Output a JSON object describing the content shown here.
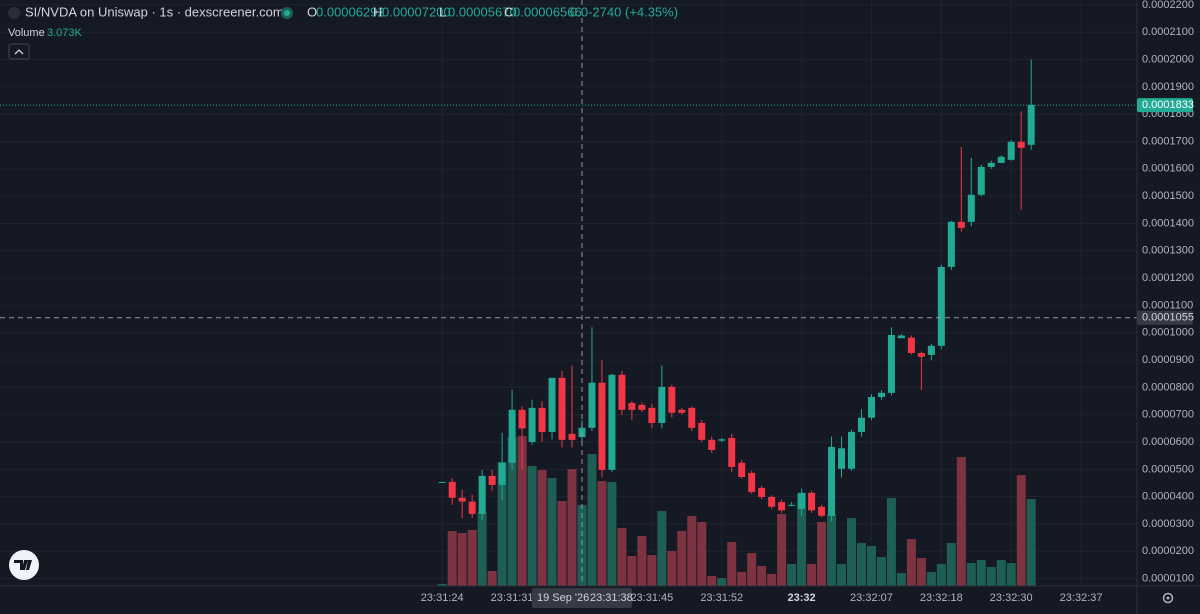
{
  "chart_data": {
    "type": "candlestick",
    "title": "SI/NVDA on Uniswap · 1s · dexscreener.com",
    "ohlc_legend": [
      {
        "key": "O",
        "value": "0.00006292"
      },
      {
        "key": "H",
        "value": "0.00007200"
      },
      {
        "key": "L",
        "value": "0.00005670"
      },
      {
        "key": "C",
        "value": "0.00006566"
      }
    ],
    "change": "0.0-2740 (+4.35%)",
    "volume_title": "Volume",
    "volume_value": "3.073K",
    "colors": {
      "up": "#22ab94",
      "down": "#f23645",
      "volume_up": "#1d5f55",
      "volume_down": "#7e3340"
    },
    "categories": [
      null,
      null,
      null,
      null,
      null,
      null,
      null,
      null,
      null,
      null,
      null,
      null,
      null,
      null,
      null,
      null,
      null,
      null,
      null,
      null,
      null,
      null,
      null,
      null,
      null,
      null,
      null,
      null,
      null,
      null,
      null,
      null,
      null,
      null,
      null,
      null,
      null,
      null,
      null,
      null,
      null,
      null,
      null,
      null,
      null,
      null,
      null,
      null,
      null,
      null,
      null,
      null,
      null,
      null,
      null,
      null,
      null,
      null,
      null,
      null
    ],
    "open": [
      4.54e-05,
      4.54e-05,
      3.96e-05,
      3.82e-05,
      3.37e-05,
      4.76e-05,
      4.43e-05,
      5.24e-05,
      7.18e-05,
      6e-05,
      7.25e-05,
      6.37e-05,
      8.35e-05,
      6.3e-05,
      6.18e-05,
      6.52e-05,
      8.17e-05,
      4.98e-05,
      8.46e-05,
      7.43e-05,
      7.36e-05,
      7.25e-05,
      6.7e-05,
      8.02e-05,
      7.18e-05,
      7.25e-05,
      6.7e-05,
      6.08e-05,
      6.05e-05,
      6.15e-05,
      5.24e-05,
      4.87e-05,
      4.32e-05,
      3.99e-05,
      3.8e-05,
      3.7e-05,
      3.55e-05,
      4.14e-05,
      3.63e-05,
      3.3e-05,
      5.02e-05,
      5.02e-05,
      6.37e-05,
      6.89e-05,
      7.65e-05,
      7.8e-05,
      9.8e-05,
      9.82e-05,
      9.26e-05,
      9.19e-05,
      9.52e-05,
      0.0001241,
      0.0001406,
      0.0001406,
      0.0001505,
      0.0001607,
      0.0001622,
      0.0001633,
      0.0001699,
      0.0001688
    ],
    "close": [
      4.54e-05,
      3.96e-05,
      3.82e-05,
      3.37e-05,
      4.76e-05,
      4.43e-05,
      5.24e-05,
      7.18e-05,
      6.5e-05,
      7.25e-05,
      6.37e-05,
      8.35e-05,
      6.08e-05,
      6.08e-05,
      6.52e-05,
      8.17e-05,
      4.98e-05,
      8.46e-05,
      7.18e-05,
      7.18e-05,
      7.18e-05,
      6.7e-05,
      8.02e-05,
      7.07e-05,
      7.07e-05,
      6.52e-05,
      6.08e-05,
      5.71e-05,
      6.1e-05,
      5.09e-05,
      4.72e-05,
      4.17e-05,
      3.99e-05,
      3.63e-05,
      3.5e-05,
      3.7e-05,
      4.14e-05,
      3.5e-05,
      3.3e-05,
      5.82e-05,
      5.77e-05,
      6.37e-05,
      6.89e-05,
      7.65e-05,
      7.8e-05,
      9.92e-05,
      9.9e-05,
      9.26e-05,
      9.12e-05,
      9.52e-05,
      0.0001241,
      0.0001406,
      0.0001384,
      0.0001505,
      0.0001607,
      0.0001622,
      0.0001644,
      0.0001699,
      0.0001677,
      0.0001834
    ],
    "high": [
      4.54e-05,
      4.68e-05,
      4.25e-05,
      4.07e-05,
      4.98e-05,
      4.98e-05,
      6.34e-05,
      7.91e-05,
      7.3e-05,
      7.55e-05,
      7.5e-05,
      8.35e-05,
      8.6e-05,
      8.8e-05,
      6.8e-05,
      0.000102,
      9e-05,
      8.5e-05,
      8.6e-05,
      7.5e-05,
      7.45e-05,
      7.4e-05,
      8.8e-05,
      8.1e-05,
      7.25e-05,
      7.3e-05,
      6.8e-05,
      6.2e-05,
      6.15e-05,
      6.3e-05,
      5.35e-05,
      4.95e-05,
      4.4e-05,
      4.05e-05,
      3.9e-05,
      3.8e-05,
      4.3e-05,
      4.2e-05,
      3.7e-05,
      6.2e-05,
      6.2e-05,
      6.45e-05,
      7.2e-05,
      7.75e-05,
      7.9e-05,
      0.000102,
      9.95e-05,
      9.9e-05,
      9.3e-05,
      9.6e-05,
      0.000125,
      0.000141,
      0.000168,
      0.000164,
      0.0001615,
      0.000163,
      0.000165,
      0.0001705,
      0.000181,
      0.0002
    ],
    "low": [
      4.54e-05,
      3.7e-05,
      3.22e-05,
      3.22e-05,
      3.15e-05,
      4.2e-05,
      3.88e-05,
      4.98e-05,
      5e-05,
      5.9e-05,
      6e-05,
      6.1e-05,
      5.8e-05,
      5.8e-05,
      6e-05,
      6.4e-05,
      4.7e-05,
      4.9e-05,
      7e-05,
      6.8e-05,
      7.1e-05,
      6.5e-05,
      6.5e-05,
      6.9e-05,
      7e-05,
      6.4e-05,
      6e-05,
      5.6e-05,
      6e-05,
      4.9e-05,
      4.65e-05,
      4.1e-05,
      3.9e-05,
      3.55e-05,
      3.4e-05,
      3.65e-05,
      3.3e-05,
      3.4e-05,
      3.25e-05,
      3.1e-05,
      4.7e-05,
      4.95e-05,
      6.2e-05,
      6.8e-05,
      7.55e-05,
      7.7e-05,
      9.8e-05,
      9.2e-05,
      7.9e-05,
      9e-05,
      9.4e-05,
      0.000123,
      0.000137,
      0.000139,
      0.00015,
      0.00016,
      0.000162,
      0.000163,
      0.000145,
      0.000167
    ],
    "volume": [
      71,
      1942,
      1871,
      1977,
      2612,
      530,
      4377,
      5260,
      5295,
      4236,
      4095,
      3812,
      3001,
      4130,
      2859,
      4660,
      3707,
      3671,
      2047,
      1059,
      1765,
      1094,
      2648,
      1236,
      1942,
      2471,
      2259,
      353,
      282,
      1553,
      494,
      1165,
      706,
      424,
      2542,
      777,
      3283,
      777,
      2259,
      2542,
      777,
      2400,
      1518,
      1412,
      1024,
      3106,
      459,
      1659,
      988,
      494,
      777,
      1518,
      4554,
      812,
      918,
      671,
      918,
      812,
      3918,
      3073
    ],
    "volume_ylim": [
      0,
      20700
    ],
    "xlim": [
      -44.3,
      69.6
    ],
    "xticks": [
      {
        "value": 0,
        "label": "23:31:24"
      },
      {
        "value": 7,
        "label": "23:31:31"
      },
      {
        "value": 21,
        "label": "23:31:45"
      },
      {
        "value": 28,
        "label": "23:31:52"
      },
      {
        "value": 36,
        "label": "23:32"
      },
      {
        "value": 43,
        "label": "23:32:07"
      },
      {
        "value": 50,
        "label": "23:32:18"
      },
      {
        "value": 57,
        "label": "23:32:30"
      },
      {
        "value": 64,
        "label": "23:32:37"
      }
    ],
    "ylim": [
      7.3e-06,
      0.0002218
    ],
    "yticks": [
      {
        "value": 0.00022,
        "label": "0.0002200"
      },
      {
        "value": 0.00021,
        "label": "0.0002100"
      },
      {
        "value": 0.0002,
        "label": "0.0002000"
      },
      {
        "value": 0.00019,
        "label": "0.0001900"
      },
      {
        "value": 0.00018,
        "label": "0.0001800"
      },
      {
        "value": 0.00017,
        "label": "0.0001700"
      },
      {
        "value": 0.00016,
        "label": "0.0001600"
      },
      {
        "value": 0.00015,
        "label": "0.0001500"
      },
      {
        "value": 0.00014,
        "label": "0.0001400"
      },
      {
        "value": 0.00013,
        "label": "0.0001300"
      },
      {
        "value": 0.00012,
        "label": "0.0001200"
      },
      {
        "value": 0.00011,
        "label": "0.0001100"
      },
      {
        "value": 0.0001,
        "label": "0.0001000"
      },
      {
        "value": 9e-05,
        "label": "0.0000900"
      },
      {
        "value": 8e-05,
        "label": "0.0000800"
      },
      {
        "value": 7e-05,
        "label": "0.0000700"
      },
      {
        "value": 6e-05,
        "label": "0.0000600"
      },
      {
        "value": 5e-05,
        "label": "0.0000500"
      },
      {
        "value": 4e-05,
        "label": "0.0000400"
      },
      {
        "value": 3e-05,
        "label": "0.0000300"
      },
      {
        "value": 2e-05,
        "label": "0.0000200"
      },
      {
        "value": 1e-05,
        "label": "0.0000100"
      }
    ],
    "grid": true,
    "last_price": 0.0001833,
    "crosshair": {
      "x": 14,
      "price": 0.0001055,
      "date": "19 Sep '26",
      "time": "23:31:38"
    }
  }
}
